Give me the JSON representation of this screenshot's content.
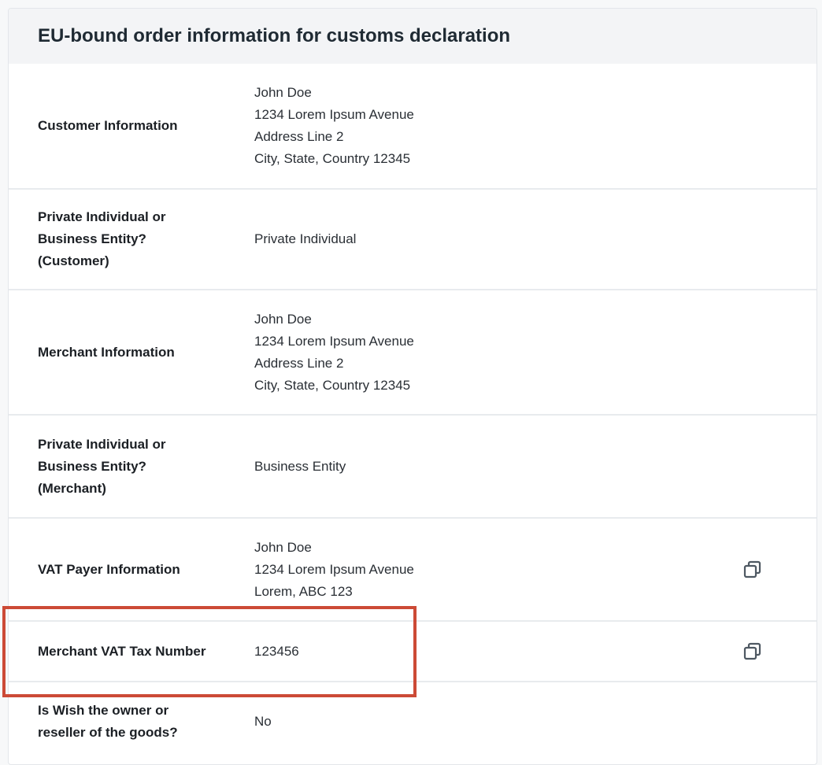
{
  "title": "EU-bound order information for customs declaration",
  "rows": [
    {
      "label": "Customer Information",
      "lines": [
        "John Doe",
        "1234 Lorem Ipsum Avenue",
        "Address Line 2",
        "City, State, Country 12345"
      ]
    },
    {
      "label_lines": [
        "Private Individual or",
        "Business Entity?",
        "(Customer)"
      ],
      "value": "Private Individual"
    },
    {
      "label": "Merchant Information",
      "lines": [
        "John Doe",
        "1234 Lorem Ipsum Avenue",
        "Address Line 2",
        "City, State, Country 12345"
      ]
    },
    {
      "label_lines": [
        "Private Individual or",
        "Business Entity?",
        "(Merchant)"
      ],
      "value": "Business Entity"
    },
    {
      "label": "VAT Payer Information",
      "lines": [
        "John Doe",
        "1234 Lorem Ipsum Avenue",
        "Lorem, ABC 123"
      ],
      "icon": "copy-icon"
    },
    {
      "label": "Merchant VAT Tax Number",
      "value": "123456",
      "icon": "copy-icon"
    },
    {
      "label_lines": [
        "Is Wish the owner or",
        "reseller of the goods?"
      ],
      "value": "No"
    }
  ],
  "highlight_color": "#cc4a36"
}
